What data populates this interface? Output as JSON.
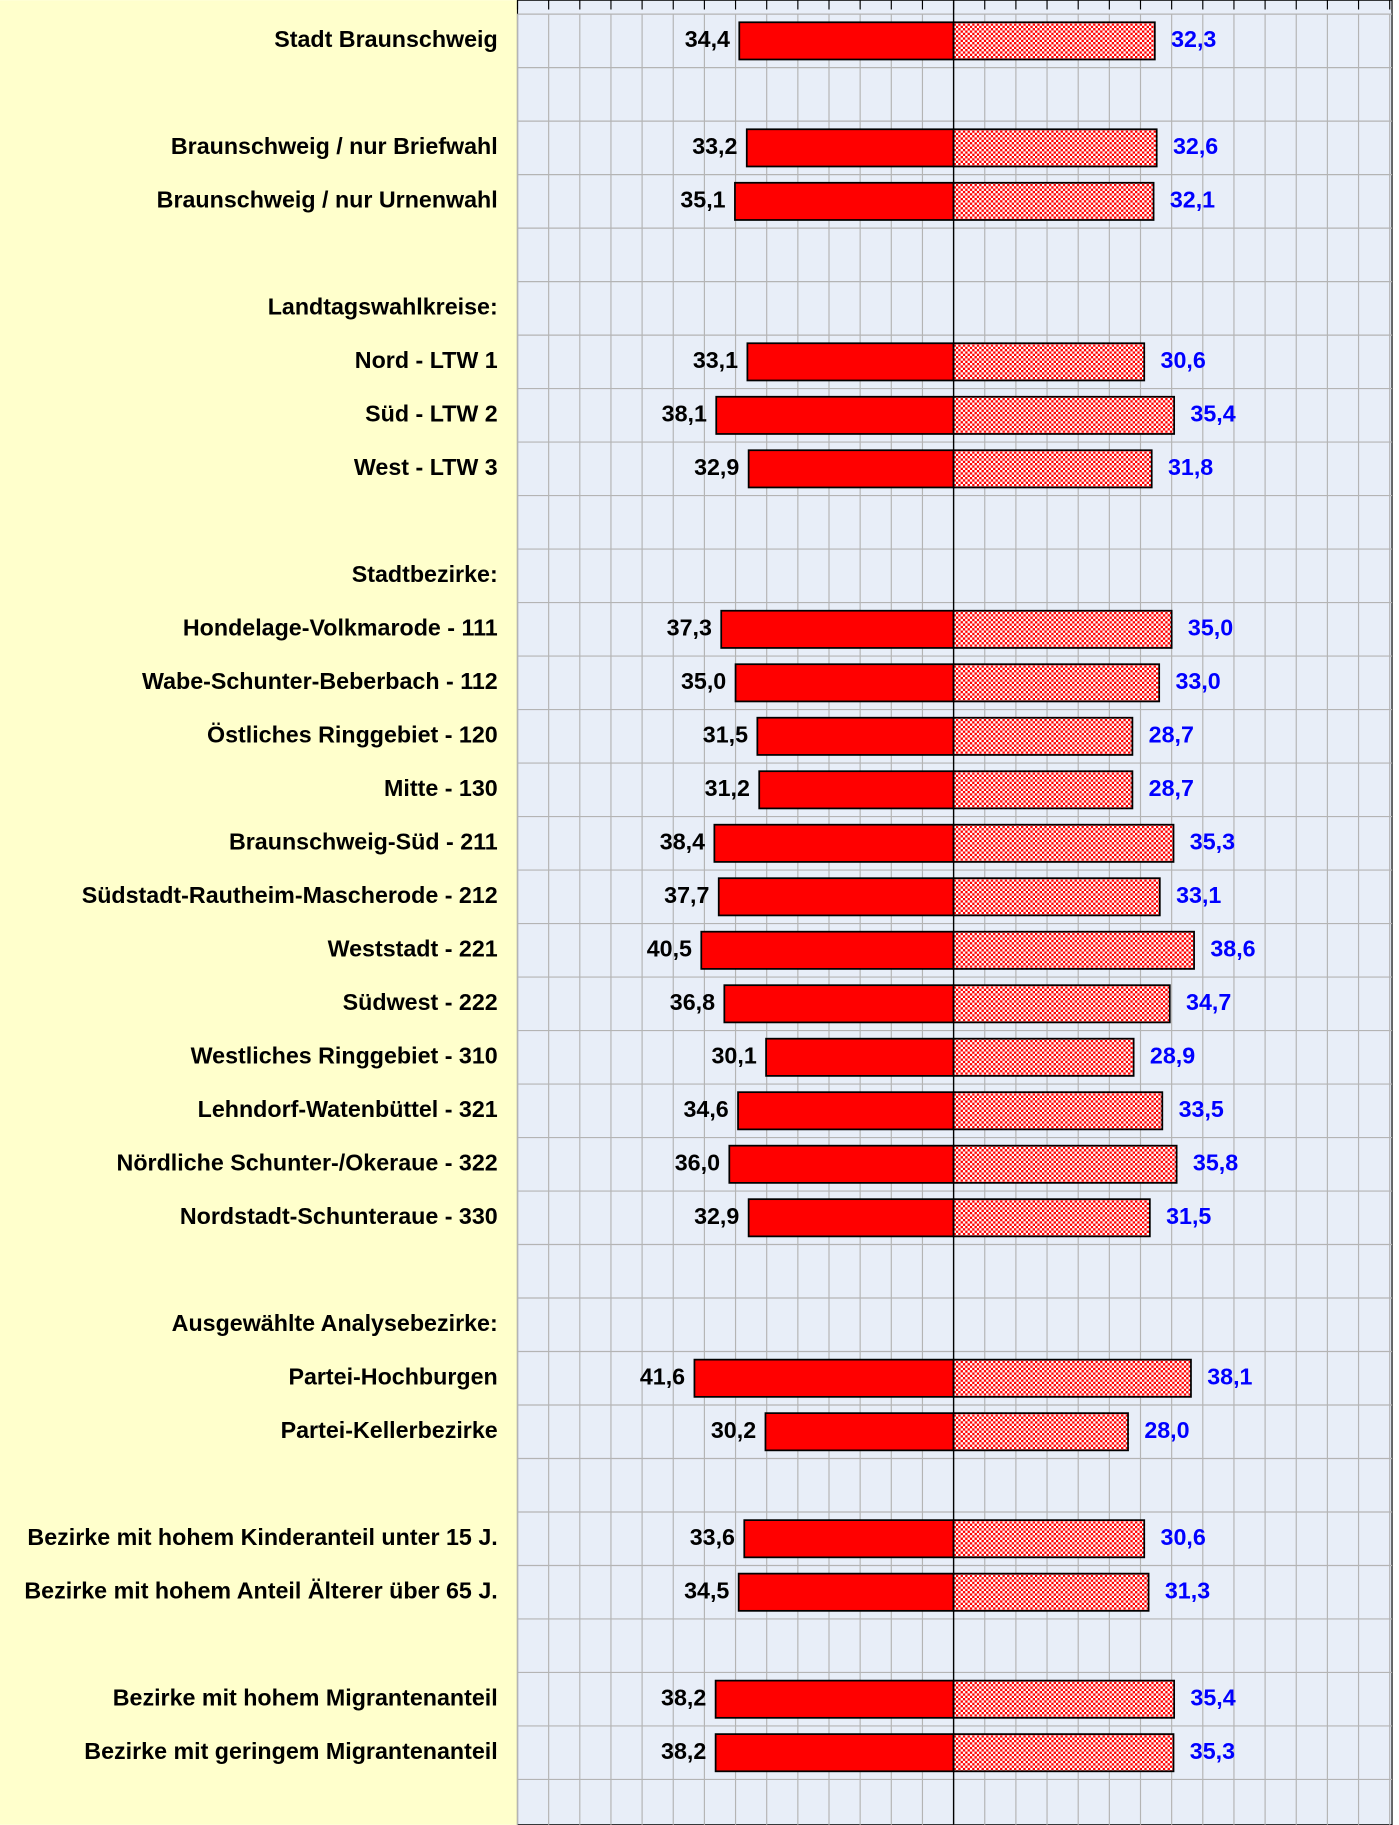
{
  "chart_data": {
    "type": "butterfly_bar",
    "categories": [
      "Stadt Braunschweig",
      null,
      "Braunschweig / nur Briefwahl",
      "Braunschweig / nur Urnenwahl",
      null,
      "Landtagswahlkreise:",
      "Nord - LTW 1",
      "Süd - LTW 2",
      "West - LTW 3",
      null,
      "Stadtbezirke:",
      "Hondelage-Volkmarode - 111",
      "Wabe-Schunter-Beberbach - 112",
      "Östliches Ringgebiet - 120",
      "Mitte - 130",
      "Braunschweig-Süd - 211",
      "Südstadt-Rautheim-Mascherode - 212",
      "Weststadt - 221",
      "Südwest - 222",
      "Westliches Ringgebiet - 310",
      "Lehndorf-Watenbüttel - 321",
      "Nördliche Schunter-/Okeraue - 322",
      "Nordstadt-Schunteraue - 330",
      null,
      "Ausgewählte Analysebezirke:",
      "Partei-Hochburgen",
      "Partei-Kellerbezirke",
      null,
      "Bezirke mit hohem Kinderanteil unter 15 J.",
      "Bezirke mit hohem Anteil Älterer über 65 J.",
      null,
      "Bezirke mit hohem Migrantenanteil",
      "Bezirke mit geringem Migrantenanteil",
      null
    ],
    "series": [
      {
        "side": "left",
        "color": "#ff0000",
        "label_color": "#000000",
        "values": [
          34.4,
          null,
          33.2,
          35.1,
          null,
          null,
          33.1,
          38.1,
          32.9,
          null,
          null,
          37.3,
          35.0,
          31.5,
          31.2,
          38.4,
          37.7,
          40.5,
          36.8,
          30.1,
          34.6,
          36.0,
          32.9,
          null,
          null,
          41.6,
          30.2,
          null,
          33.6,
          34.5,
          null,
          38.2,
          38.2,
          null
        ],
        "value_labels": [
          "34,4",
          null,
          "33,2",
          "35,1",
          null,
          null,
          "33,1",
          "38,1",
          "32,9",
          null,
          null,
          "37,3",
          "35,0",
          "31,5",
          "31,2",
          "38,4",
          "37,7",
          "40,5",
          "36,8",
          "30,1",
          "34,6",
          "36,0",
          "32,9",
          null,
          null,
          "41,6",
          "30,2",
          null,
          "33,6",
          "34,5",
          null,
          "38,2",
          "38,2",
          null
        ]
      },
      {
        "side": "right",
        "color": "#ff0000",
        "pattern": "crosshatch",
        "label_color": "#0000ff",
        "values": [
          32.3,
          null,
          32.6,
          32.1,
          null,
          null,
          30.6,
          35.4,
          31.8,
          null,
          null,
          35.0,
          33.0,
          28.7,
          28.7,
          35.3,
          33.1,
          38.6,
          34.7,
          28.9,
          33.5,
          35.8,
          31.5,
          null,
          null,
          38.1,
          28.0,
          null,
          30.6,
          31.3,
          null,
          35.4,
          35.3,
          null
        ],
        "value_labels": [
          "32,3",
          null,
          "32,6",
          "32,1",
          null,
          null,
          "30,6",
          "35,4",
          "31,8",
          null,
          null,
          "35,0",
          "33,0",
          "28,7",
          "28,7",
          "35,3",
          "33,1",
          "38,6",
          "34,7",
          "28,9",
          "33,5",
          "35,8",
          "31,5",
          null,
          null,
          "38,1",
          "28,0",
          null,
          "30,6",
          "31,3",
          null,
          "35,4",
          "35,3",
          null
        ]
      }
    ],
    "xlim": [
      -70,
      70
    ],
    "xticks": [
      -70,
      -65,
      -60,
      -55,
      -50,
      -45,
      -40,
      -35,
      -30,
      -25,
      -20,
      -15,
      -10,
      -5,
      0,
      5,
      10,
      15,
      20,
      25,
      30,
      35,
      40,
      45,
      50,
      55,
      60,
      65,
      70
    ],
    "grid": true
  }
}
